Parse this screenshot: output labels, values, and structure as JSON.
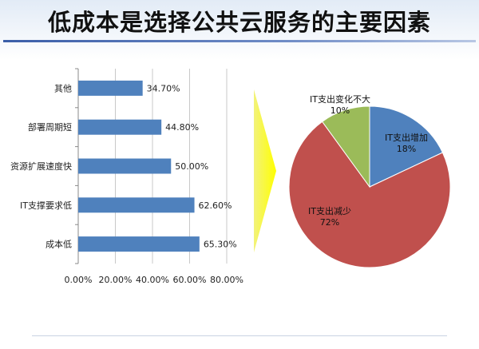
{
  "title": "低成本是选择公共云服务的主要因素",
  "chart_data": [
    {
      "type": "bar",
      "orientation": "horizontal",
      "categories": [
        "其他",
        "部署周期短",
        "资源扩展速度快",
        "IT支撑要求低",
        "成本低"
      ],
      "values": [
        34.7,
        44.8,
        50.0,
        62.6,
        65.3
      ],
      "value_labels": [
        "34.70%",
        "44.80%",
        "50.00%",
        "62.60%",
        "65.30%"
      ],
      "xlim": [
        0,
        80
      ],
      "x_ticks": [
        "0.00%",
        "20.00%",
        "40.00%",
        "60.00%",
        "80.00%"
      ],
      "grid": "vertical",
      "bar_color": "#4f81bd"
    },
    {
      "type": "pie",
      "slices": [
        {
          "label": "IT支出增加",
          "pct": "18%",
          "value": 18,
          "color": "#4f81bd"
        },
        {
          "label": "IT支出减少",
          "pct": "72%",
          "value": 72,
          "color": "#c0504d"
        },
        {
          "label": "IT支出变化不大",
          "pct": "10%",
          "value": 10,
          "color": "#9bbb59"
        }
      ]
    }
  ]
}
